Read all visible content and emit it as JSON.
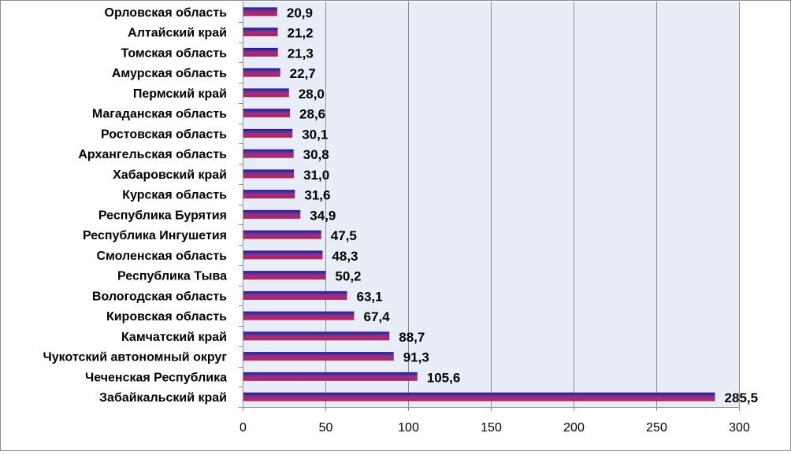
{
  "chart_data": {
    "type": "bar",
    "orientation": "horizontal",
    "categories": [
      "Забайкальский край",
      "Чеченская Республика",
      "Чукотский автономный округ",
      "Камчатский край",
      "Кировская область",
      "Вологодская область",
      "Республика Тыва",
      "Смоленская область",
      "Республика Ингушетия",
      "Республика Бурятия",
      "Курская область",
      "Хабаровский край",
      "Архангельская область",
      "Ростовская область",
      "Магаданская область",
      "Пермский край",
      "Амурская область",
      "Томская область",
      "Алтайский край",
      "Орловская область"
    ],
    "values": [
      285.5,
      105.6,
      91.3,
      88.7,
      67.4,
      63.1,
      50.2,
      48.3,
      47.5,
      34.9,
      31.6,
      31.0,
      30.8,
      30.1,
      28.6,
      28.0,
      22.7,
      21.3,
      21.2,
      20.9
    ],
    "value_labels": [
      "285,5",
      "105,6",
      "91,3",
      "88,7",
      "67,4",
      "63,1",
      "50,2",
      "48,3",
      "47,5",
      "34,9",
      "31,6",
      "31,0",
      "30,8",
      "30,1",
      "28,6",
      "28,0",
      "22,7",
      "21,3",
      "21,2",
      "20,9"
    ],
    "xlim": [
      0,
      300
    ],
    "xticks": [
      0,
      50,
      100,
      150,
      200,
      250,
      300
    ],
    "xtick_labels": [
      "0",
      "50",
      "100",
      "150",
      "200",
      "250",
      "300"
    ],
    "grid": true,
    "legend": false,
    "title": "",
    "xlabel": "",
    "ylabel": "",
    "colors": {
      "plot_background": "#e9edf7",
      "gridline": "#8c8c8c",
      "bar_top": "#1e1e8c",
      "bar_mid": "#7a3a9a",
      "bar_bottom": "#e0104a"
    }
  }
}
